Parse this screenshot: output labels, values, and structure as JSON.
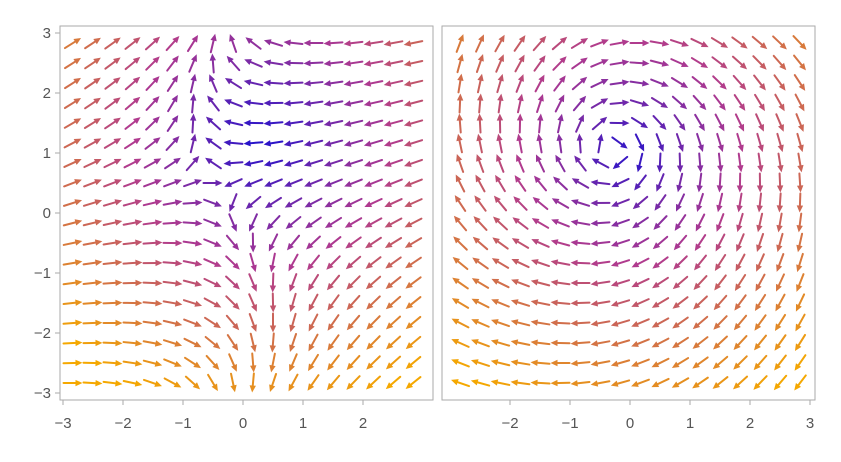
{
  "chart_data": [
    {
      "type": "vector-field",
      "xlim": [
        -3,
        3
      ],
      "ylim": [
        -3,
        3
      ],
      "x_ticks": [
        "−3",
        "−2",
        "−1",
        "0",
        "1",
        "2"
      ],
      "y_ticks": [
        "3",
        "2",
        "1",
        "0",
        "−1",
        "−2",
        "−3"
      ],
      "grid": false,
      "field": "repelling field with a singular point near (0.3, 1.2); arrows colored by distance from center",
      "colors": {
        "low": "#1a0fd0",
        "mid": "#b03a8f",
        "high": "#f5a800"
      }
    },
    {
      "type": "vector-field",
      "xlim": [
        -3,
        3
      ],
      "ylim": [
        -3,
        3
      ],
      "x_ticks": [
        "−2",
        "−1",
        "0",
        "1",
        "2",
        "3"
      ],
      "y_ticks": [],
      "grid": false,
      "field": "swirling field with a source near (0, 1); arrows colored by distance from center",
      "colors": {
        "low": "#1a0fd0",
        "mid": "#b03a8f",
        "high": "#f5a800"
      }
    }
  ]
}
